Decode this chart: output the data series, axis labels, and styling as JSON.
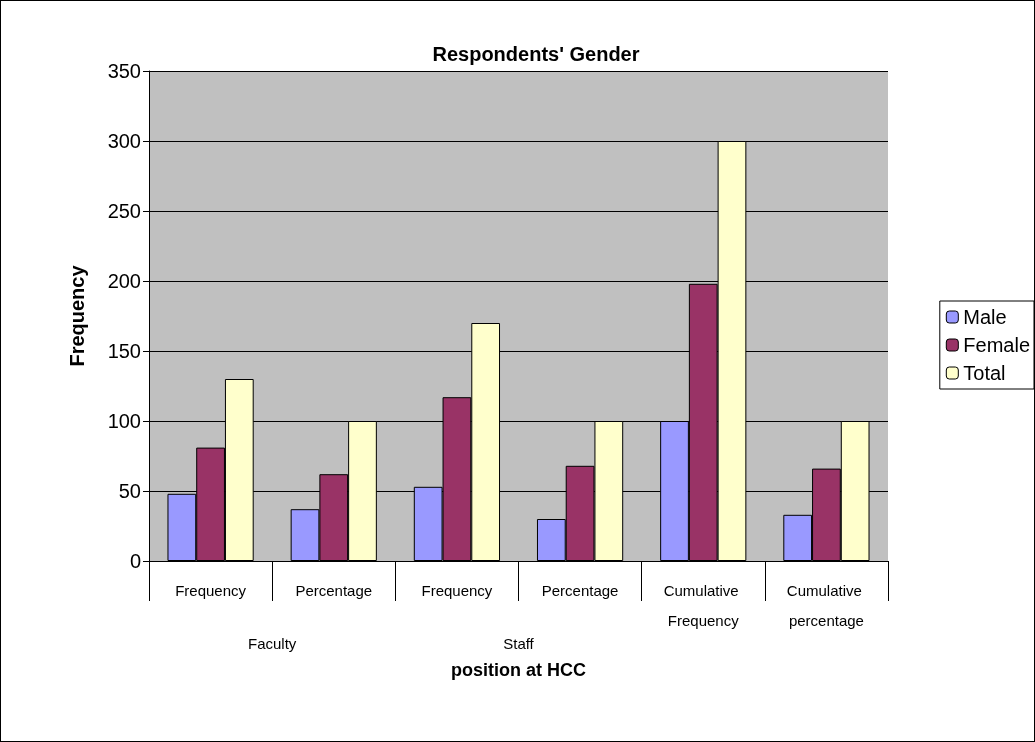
{
  "chart_data": {
    "type": "bar",
    "title": "Respondents' Gender",
    "xlabel": "position at HCC",
    "ylabel": "Frequency",
    "categories": [
      "Frequency",
      "Percentage",
      "Frequency",
      "Percentage",
      "Cumulative Frequency",
      "Cumulative percentage"
    ],
    "annotations": [
      "Faculty",
      "Staff"
    ],
    "series": [
      {
        "name": "Male",
        "color": "#9999ff",
        "values": [
          48,
          37,
          53,
          30,
          100,
          33
        ]
      },
      {
        "name": "Female",
        "color": "#993366",
        "values": [
          81,
          62,
          117,
          68,
          198,
          66
        ]
      },
      {
        "name": "Total",
        "color": "#ffffcc",
        "values": [
          130,
          100,
          170,
          100,
          300,
          100
        ]
      }
    ],
    "ylim": [
      0,
      350
    ],
    "yticks": [
      0,
      50,
      100,
      150,
      200,
      250,
      300,
      350
    ],
    "grid": "y",
    "legend": "right"
  }
}
